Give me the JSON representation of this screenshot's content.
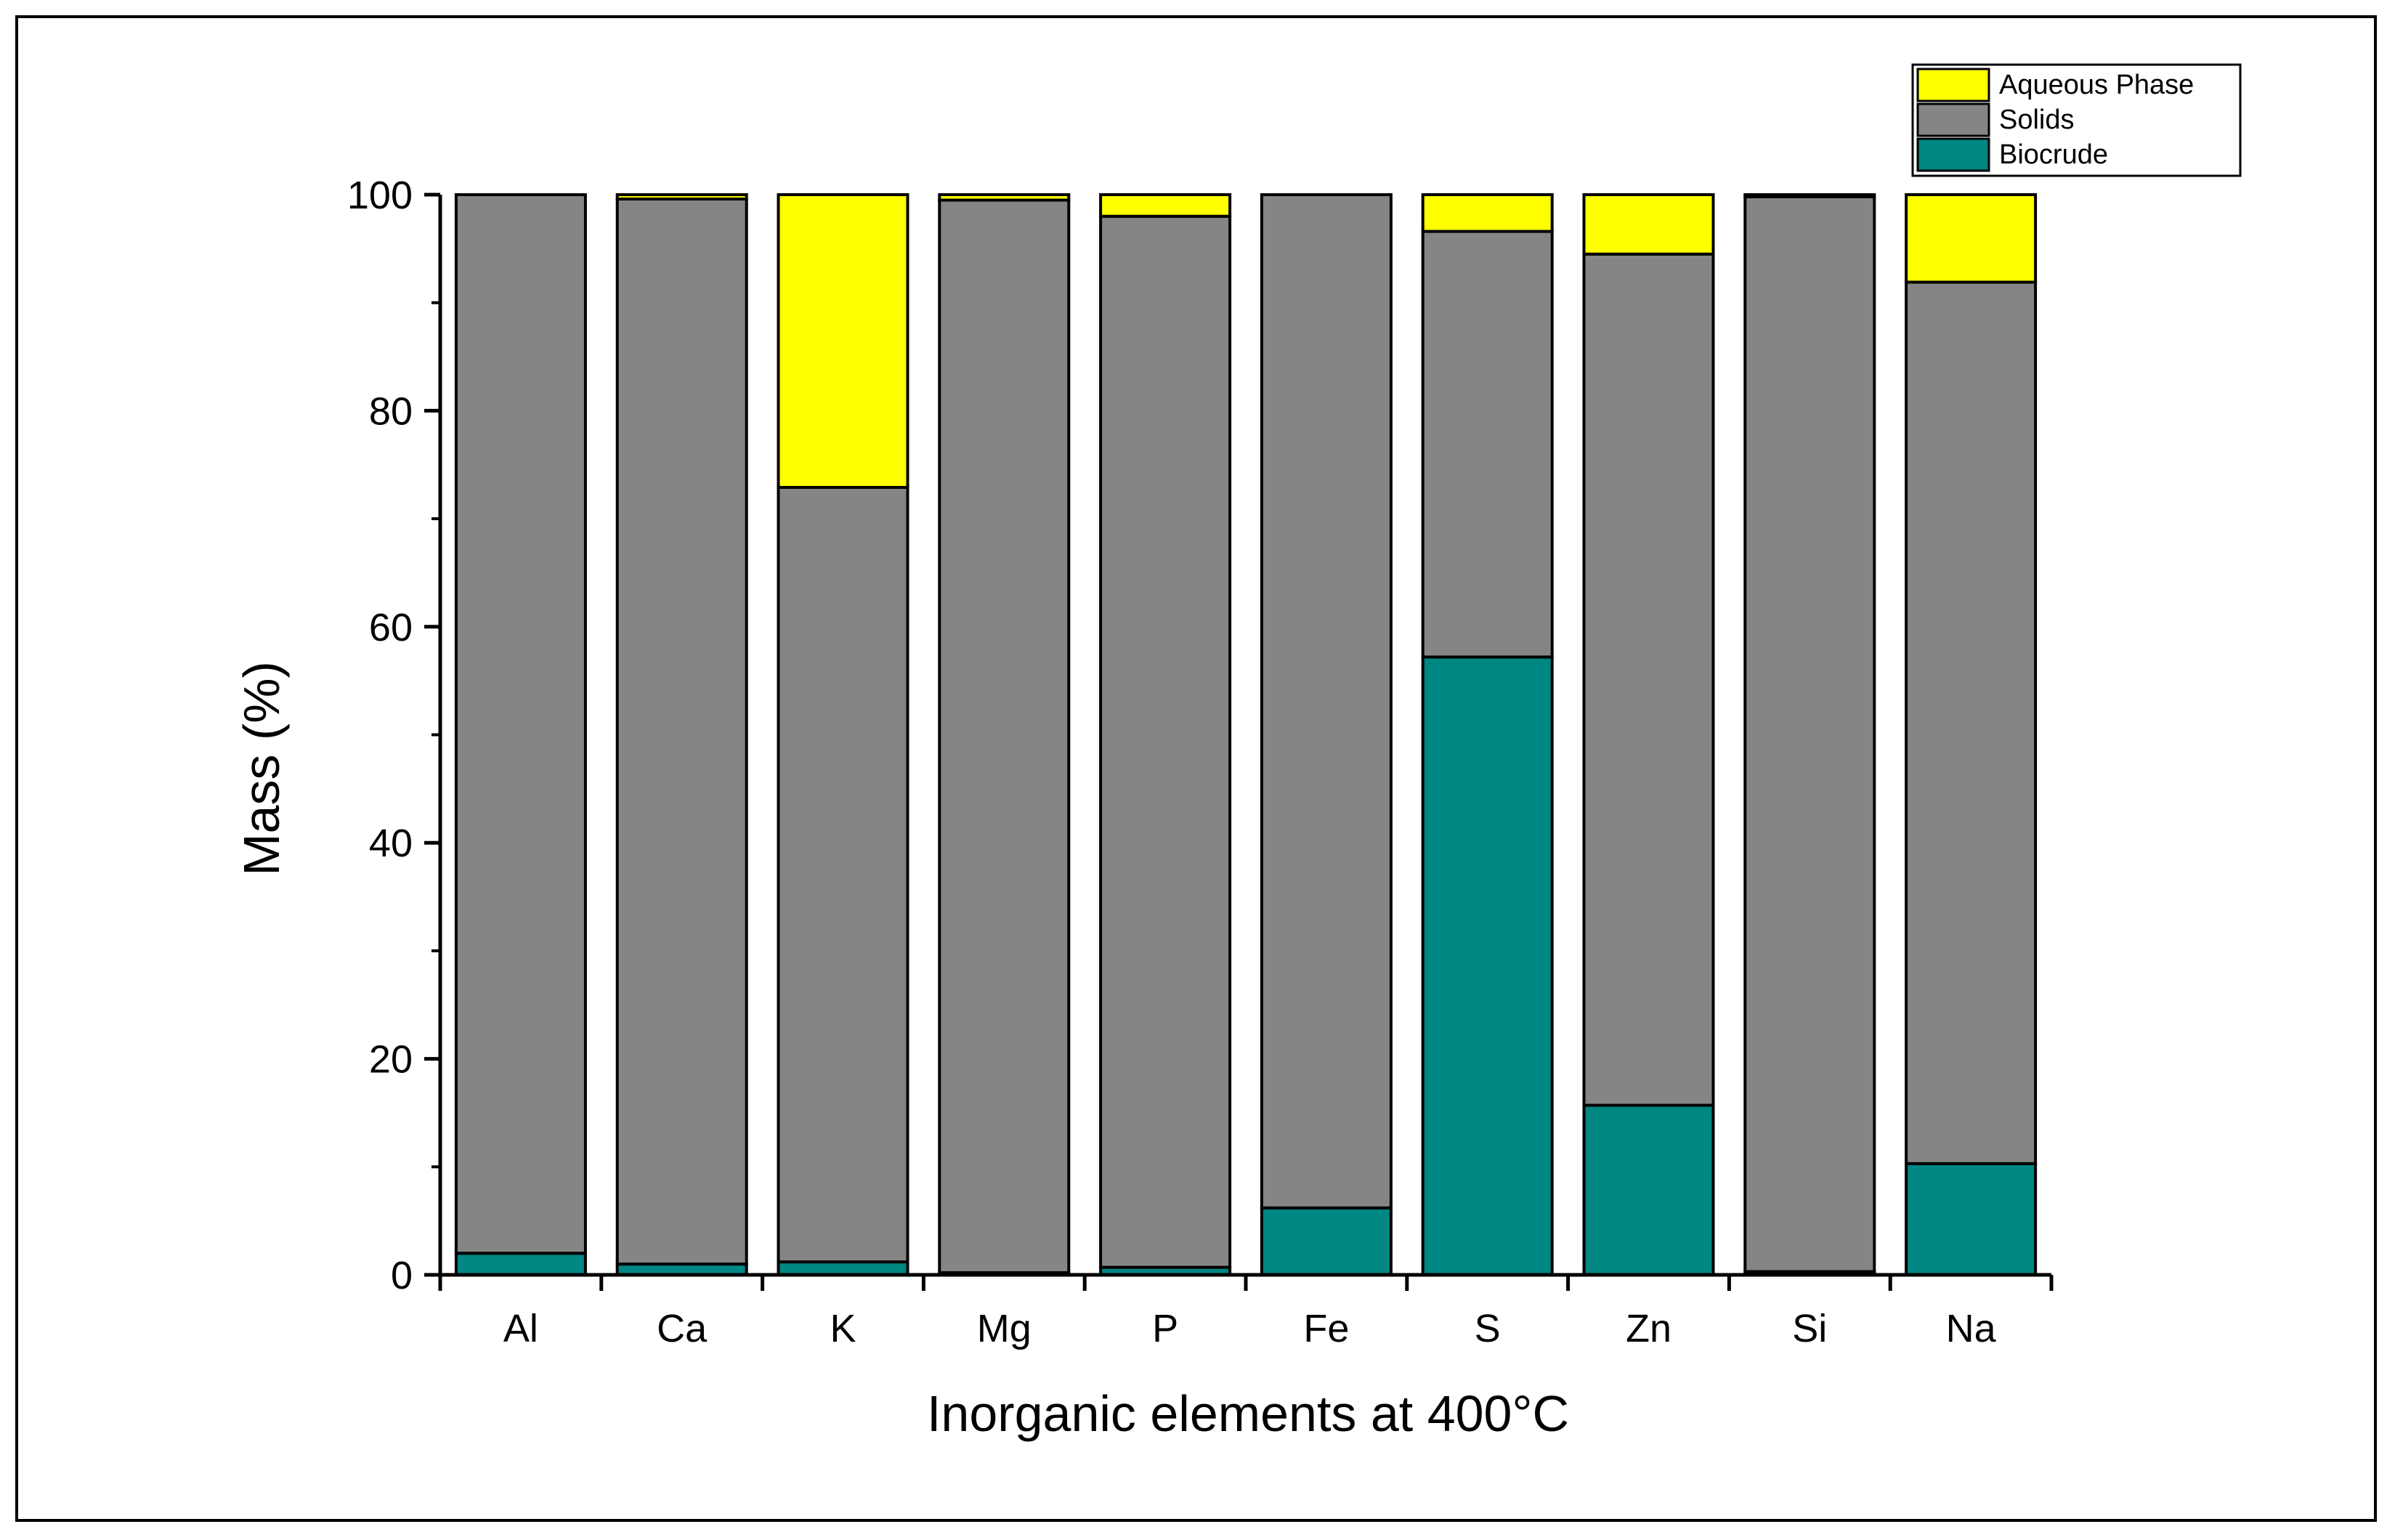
{
  "chart_data": {
    "type": "bar",
    "stacked": true,
    "title": "",
    "xlabel": "Inorganic elements at 400°C",
    "ylabel": "Mass (%)",
    "ylim": [
      0,
      100
    ],
    "yticks": [
      0,
      20,
      40,
      60,
      80,
      100
    ],
    "categories": [
      "Al",
      "Ca",
      "K",
      "Mg",
      "P",
      "Fe",
      "S",
      "Zn",
      "Si",
      "Na"
    ],
    "series": [
      {
        "name": "Biocrude",
        "color": "#008683",
        "values": [
          2.0,
          1.0,
          1.2,
          0.2,
          0.7,
          6.2,
          57.2,
          15.7,
          0.3,
          10.3
        ]
      },
      {
        "name": "Solids",
        "color": "#858585",
        "values": [
          98.0,
          98.6,
          71.7,
          99.3,
          97.3,
          93.8,
          39.4,
          78.8,
          99.5,
          81.6
        ]
      },
      {
        "name": "Aqueous Phase",
        "color": "#ffff00",
        "values": [
          0.0,
          0.4,
          27.1,
          0.5,
          2.0,
          0.0,
          3.4,
          5.5,
          0.2,
          8.1
        ]
      }
    ],
    "legend": {
      "position": "top-right",
      "order": [
        "Aqueous Phase",
        "Solids",
        "Biocrude"
      ]
    },
    "grid": false
  }
}
